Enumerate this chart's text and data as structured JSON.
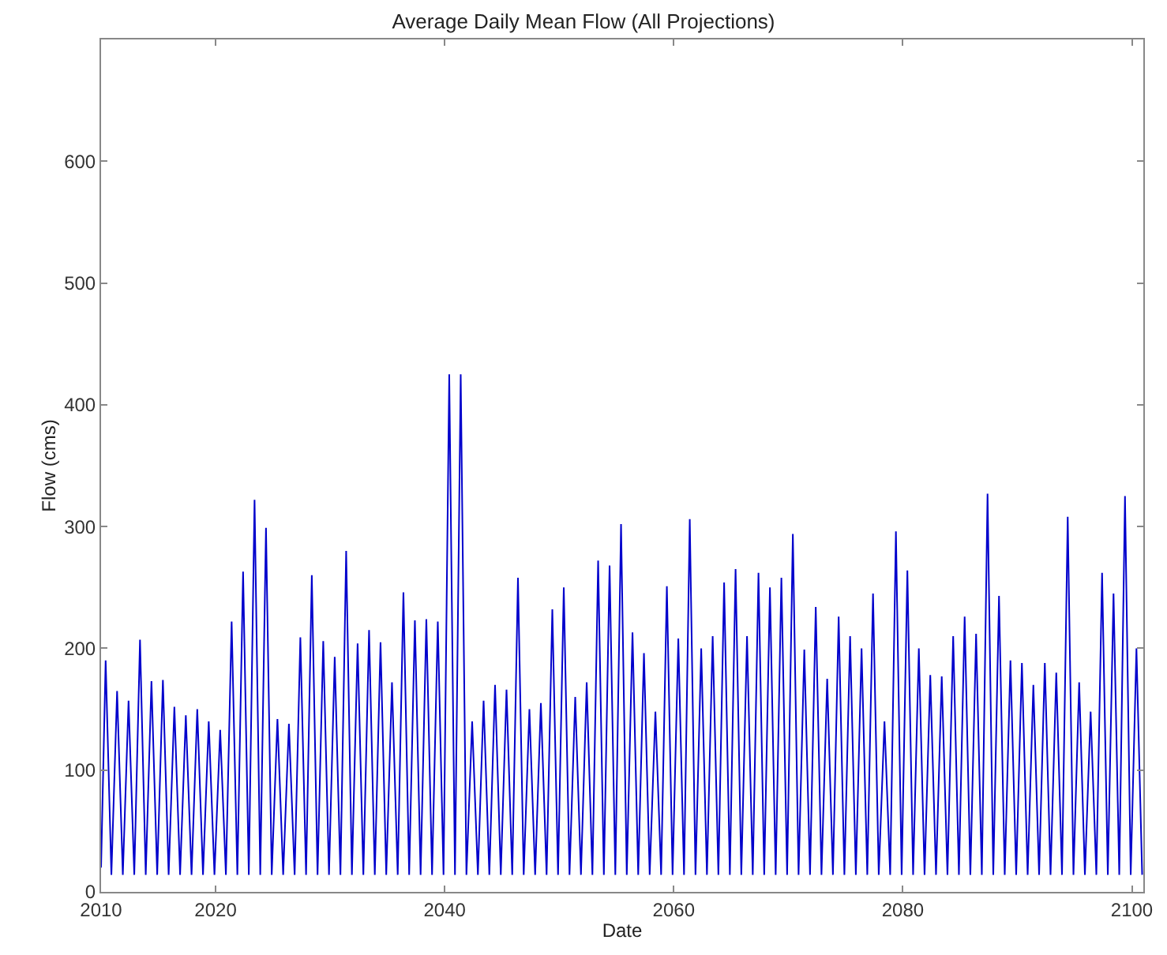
{
  "chart_data": {
    "type": "line",
    "title": "Average Daily Mean Flow (All Projections)",
    "xlabel": "Date",
    "ylabel": "Flow (cms)",
    "x": [
      2010.0,
      2010.4,
      2010.9,
      2011.4,
      2011.9,
      2012.4,
      2012.9,
      2013.4,
      2013.9,
      2014.4,
      2014.9,
      2015.4,
      2015.9,
      2016.4,
      2016.9,
      2017.4,
      2017.9,
      2018.4,
      2018.9,
      2019.4,
      2019.9,
      2020.4,
      2020.9,
      2021.4,
      2021.9,
      2022.4,
      2022.9,
      2023.4,
      2023.9,
      2024.4,
      2024.9,
      2025.4,
      2025.9,
      2026.4,
      2026.9,
      2027.4,
      2027.9,
      2028.4,
      2028.9,
      2029.4,
      2029.9,
      2030.4,
      2030.9,
      2031.4,
      2031.9,
      2032.4,
      2032.9,
      2033.4,
      2033.9,
      2034.4,
      2034.9,
      2035.4,
      2035.9,
      2036.4,
      2036.9,
      2037.4,
      2037.9,
      2038.4,
      2038.9,
      2039.4,
      2039.9,
      2040.4,
      2040.9,
      2041.4,
      2041.9,
      2042.4,
      2042.9,
      2043.4,
      2043.9,
      2044.4,
      2044.9,
      2045.4,
      2045.9,
      2046.4,
      2046.9,
      2047.4,
      2047.9,
      2048.4,
      2048.9,
      2049.4,
      2049.9,
      2050.4,
      2050.9,
      2051.4,
      2051.9,
      2052.4,
      2052.9,
      2053.4,
      2053.9,
      2054.4,
      2054.9,
      2055.4,
      2055.9,
      2056.4,
      2056.9,
      2057.4,
      2057.9,
      2058.4,
      2058.9,
      2059.4,
      2059.9,
      2060.4,
      2060.9,
      2061.4,
      2061.9,
      2062.4,
      2062.9,
      2063.4,
      2063.9,
      2064.4,
      2064.9,
      2065.4,
      2065.9,
      2066.4,
      2066.9,
      2067.4,
      2067.9,
      2068.4,
      2068.9,
      2069.4,
      2069.9,
      2070.4,
      2070.9,
      2071.4,
      2071.9,
      2072.4,
      2072.9,
      2073.4,
      2073.9,
      2074.4,
      2074.9,
      2075.4,
      2075.9,
      2076.4,
      2076.9,
      2077.4,
      2077.9,
      2078.4,
      2078.9,
      2079.4,
      2079.9,
      2080.4,
      2080.9,
      2081.4,
      2081.9,
      2082.4,
      2082.9,
      2083.4,
      2083.9,
      2084.4,
      2084.9,
      2085.4,
      2085.9,
      2086.4,
      2086.9,
      2087.4,
      2087.9,
      2088.4,
      2088.9,
      2089.4,
      2089.9,
      2090.4,
      2090.9,
      2091.4,
      2091.9,
      2092.4,
      2092.9,
      2093.4,
      2093.9,
      2094.4,
      2094.9,
      2095.4,
      2095.9,
      2096.4,
      2096.9,
      2097.4,
      2097.9,
      2098.4,
      2098.9,
      2099.4,
      2099.9,
      2100.4,
      2100.9
    ],
    "series": [
      {
        "color": "#0000cc",
        "values": [
          20,
          190,
          14,
          165,
          14,
          157,
          14,
          207,
          14,
          173,
          14,
          174,
          14,
          152,
          14,
          145,
          14,
          150,
          14,
          140,
          14,
          133,
          14,
          222,
          14,
          263,
          14,
          322,
          14,
          299,
          14,
          142,
          14,
          138,
          14,
          209,
          14,
          260,
          14,
          206,
          14,
          193,
          14,
          280,
          14,
          204,
          14,
          215,
          14,
          205,
          14,
          172,
          14,
          246,
          14,
          223,
          14,
          224,
          14,
          222,
          14,
          425,
          14,
          425,
          14,
          140,
          14,
          157,
          14,
          170,
          14,
          166,
          14,
          258,
          14,
          150,
          14,
          155,
          14,
          232,
          14,
          250,
          14,
          160,
          14,
          172,
          14,
          272,
          14,
          268,
          14,
          302,
          14,
          213,
          14,
          196,
          14,
          148,
          14,
          251,
          14,
          208,
          14,
          306,
          14,
          200,
          14,
          210,
          14,
          254,
          14,
          265,
          14,
          210,
          14,
          262,
          14,
          250,
          14,
          258,
          14,
          294,
          14,
          199,
          14,
          234,
          14,
          175,
          14,
          226,
          14,
          210,
          14,
          200,
          14,
          245,
          14,
          140,
          14,
          296,
          14,
          264,
          14,
          200,
          14,
          178,
          14,
          177,
          14,
          210,
          14,
          226,
          14,
          212,
          14,
          327,
          14,
          243,
          14,
          190,
          14,
          188,
          14,
          170,
          14,
          188,
          14,
          180,
          14,
          308,
          14,
          172,
          14,
          148,
          14,
          262,
          14,
          245,
          14,
          325,
          14,
          200,
          14
        ]
      }
    ],
    "xlim": [
      2010,
      2101
    ],
    "xticks": [
      2010,
      2020,
      2040,
      2060,
      2080,
      2100
    ],
    "ylim": [
      0,
      700
    ],
    "yticks": [
      0,
      100,
      200,
      300,
      400,
      500,
      600
    ],
    "line_style": "solid",
    "marker": "none"
  }
}
